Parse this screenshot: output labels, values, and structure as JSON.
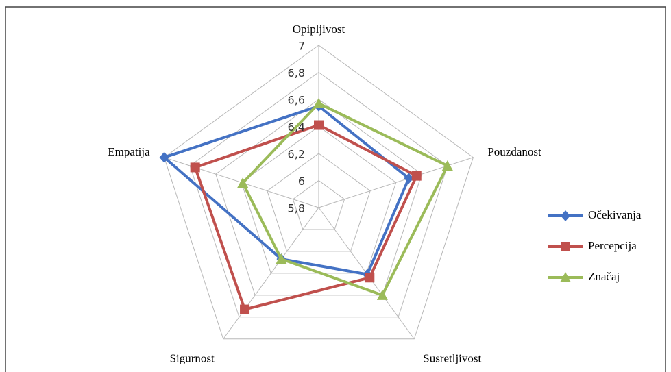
{
  "chart_data": {
    "type": "radar",
    "categories": [
      "Opipljivost",
      "Pouzdanost",
      "Susretljivost",
      "Sigurnost",
      "Empatija"
    ],
    "series": [
      {
        "name": "Očekivanja",
        "color": "#4472c4",
        "marker": "diamond",
        "values": [
          6.55,
          6.5,
          6.41,
          6.27,
          7.0
        ]
      },
      {
        "name": "Percepcija",
        "color": "#c0504d",
        "marker": "square",
        "values": [
          6.41,
          6.56,
          6.44,
          6.73,
          6.76
        ]
      },
      {
        "name": "Značaj",
        "color": "#9bbb59",
        "marker": "triangle",
        "values": [
          6.57,
          6.8,
          6.6,
          6.27,
          6.39
        ]
      }
    ],
    "rlim": [
      5.8,
      7
    ],
    "rticks": [
      {
        "value": 5.8,
        "label": "5,8"
      },
      6,
      {
        "value": 6.2,
        "label": "6,2"
      },
      {
        "value": 6.4,
        "label": "6,4"
      },
      {
        "value": 6.6,
        "label": "6,6"
      },
      {
        "value": 6.8,
        "label": "6,8"
      },
      7
    ],
    "grid": true,
    "legend": "right"
  }
}
